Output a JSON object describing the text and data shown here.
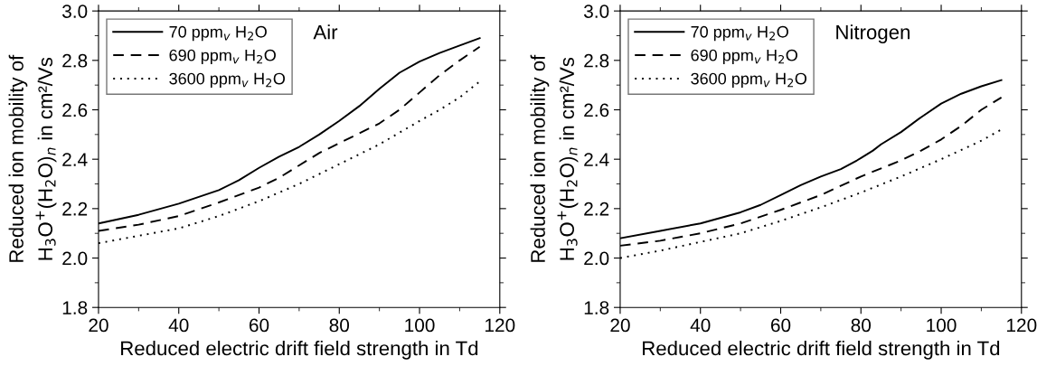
{
  "chart_data": [
    {
      "type": "line",
      "xlabel": "Reduced electric drift field strength in Td",
      "ylabel": "Reduced ion mobility of\nH$_{3}$O$^{+}$(H$_{2}$O)$_{n}$ in cm²/Vs",
      "annotations": [
        "Air"
      ],
      "xlim": [
        20,
        120
      ],
      "ylim": [
        1.8,
        3.0
      ],
      "xticks": [
        20,
        40,
        60,
        80,
        100,
        120
      ],
      "yticks": [
        {
          "value": 1.8,
          "label": "1.8"
        },
        {
          "value": 2.0,
          "label": "2.0"
        },
        {
          "value": 2.2,
          "label": "2.2"
        },
        {
          "value": 2.4,
          "label": "2.4"
        },
        {
          "value": 2.6,
          "label": "2.6"
        },
        {
          "value": 2.8,
          "label": "2.8"
        },
        {
          "value": 3.0,
          "label": "3.0"
        }
      ],
      "grid": false,
      "legend": "top left",
      "marker": "none",
      "series": [
        {
          "name": "70 ppm$_{v}$ H$_{2}$O",
          "color": "#000000",
          "line_style": "solid",
          "x": [
            20,
            30,
            40,
            50,
            55,
            60,
            65,
            70,
            75,
            80,
            85,
            90,
            95,
            100,
            105,
            110,
            115
          ],
          "values": [
            2.14,
            2.175,
            2.22,
            2.275,
            2.315,
            2.365,
            2.41,
            2.45,
            2.5,
            2.555,
            2.615,
            2.685,
            2.75,
            2.795,
            2.83,
            2.86,
            2.89
          ]
        },
        {
          "name": "690 ppm$_{v}$ H$_{2}$O",
          "color": "#000000",
          "line_style": "dashed",
          "x": [
            20,
            30,
            40,
            50,
            60,
            65,
            70,
            75,
            80,
            85,
            90,
            95,
            100,
            105,
            110,
            115
          ],
          "values": [
            2.11,
            2.135,
            2.17,
            2.225,
            2.285,
            2.325,
            2.375,
            2.425,
            2.465,
            2.505,
            2.545,
            2.6,
            2.67,
            2.74,
            2.8,
            2.855
          ]
        },
        {
          "name": "3600 ppm$_{v}$ H$_{2}$O",
          "color": "#000000",
          "line_style": "dotted",
          "x": [
            20,
            30,
            40,
            50,
            60,
            70,
            80,
            90,
            100,
            105,
            110,
            115
          ],
          "values": [
            2.06,
            2.09,
            2.12,
            2.17,
            2.23,
            2.3,
            2.38,
            2.46,
            2.555,
            2.6,
            2.65,
            2.715
          ]
        }
      ]
    },
    {
      "type": "line",
      "xlabel": "Reduced electric drift field strength in Td",
      "ylabel": "Reduced ion mobility of\nH$_{3}$O$^{+}$(H$_{2}$O)$_{n}$ in cm²/Vs",
      "annotations": [
        "Nitrogen"
      ],
      "xlim": [
        20,
        120
      ],
      "ylim": [
        1.8,
        3.0
      ],
      "xticks": [
        20,
        40,
        60,
        80,
        100,
        120
      ],
      "yticks": [
        {
          "value": 1.8,
          "label": "1.8"
        },
        {
          "value": 2.0,
          "label": "2.0"
        },
        {
          "value": 2.2,
          "label": "2.2"
        },
        {
          "value": 2.4,
          "label": "2.4"
        },
        {
          "value": 2.6,
          "label": "2.6"
        },
        {
          "value": 2.8,
          "label": "2.8"
        },
        {
          "value": 3.0,
          "label": "3.0"
        }
      ],
      "grid": false,
      "legend": "top left",
      "marker": "none",
      "series": [
        {
          "name": "70 ppm$_{v}$ H$_{2}$O",
          "color": "#000000",
          "line_style": "solid",
          "x": [
            20,
            30,
            40,
            50,
            55,
            60,
            65,
            70,
            75,
            79,
            80,
            83,
            85,
            90,
            95,
            100,
            105,
            110,
            115
          ],
          "values": [
            2.08,
            2.11,
            2.14,
            2.185,
            2.215,
            2.255,
            2.295,
            2.33,
            2.36,
            2.395,
            2.405,
            2.435,
            2.46,
            2.51,
            2.57,
            2.625,
            2.665,
            2.695,
            2.72
          ]
        },
        {
          "name": "690 ppm$_{v}$ H$_{2}$O",
          "color": "#000000",
          "line_style": "dashed",
          "x": [
            20,
            30,
            40,
            50,
            60,
            70,
            80,
            90,
            95,
            100,
            105,
            110,
            115
          ],
          "values": [
            2.05,
            2.07,
            2.1,
            2.14,
            2.195,
            2.255,
            2.33,
            2.395,
            2.435,
            2.48,
            2.535,
            2.6,
            2.65
          ]
        },
        {
          "name": "3600 ppm$_{v}$ H$_{2}$O",
          "color": "#000000",
          "line_style": "dotted",
          "x": [
            20,
            30,
            40,
            50,
            60,
            70,
            80,
            90,
            100,
            110,
            115
          ],
          "values": [
            2.0,
            2.03,
            2.065,
            2.1,
            2.15,
            2.205,
            2.265,
            2.33,
            2.4,
            2.475,
            2.52
          ]
        }
      ]
    }
  ]
}
